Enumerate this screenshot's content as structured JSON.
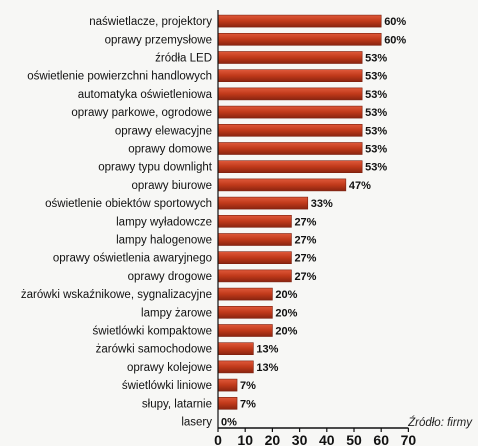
{
  "chart_data": {
    "type": "bar",
    "orientation": "horizontal",
    "title": "",
    "xlabel": "",
    "ylabel": "",
    "xlim": [
      0,
      70
    ],
    "xticks": [
      0,
      10,
      20,
      30,
      40,
      50,
      60,
      70
    ],
    "value_suffix": "%",
    "bar_color": "#c0391a",
    "grid": false,
    "source": "Źródło: firmy",
    "categories": [
      "naświetlacze, projektory",
      "oprawy przemysłowe",
      "źródła LED",
      "oświetlenie powierzchni handlowych",
      "automatyka oświetleniowa",
      "oprawy parkowe, ogrodowe",
      "oprawy elewacyjne",
      "oprawy domowe",
      "oprawy typu downlight",
      "oprawy biurowe",
      "oświetlenie obiektów sportowych",
      "lampy wyładowcze",
      "lampy halogenowe",
      "oprawy oświetlenia awaryjnego",
      "oprawy drogowe",
      "żarówki wskaźnikowe, sygnalizacyjne",
      "lampy żarowe",
      "świetlówki kompaktowe",
      "żarówki samochodowe",
      "oprawy kolejowe",
      "świetlówki liniowe",
      "słupy, latarnie",
      "lasery"
    ],
    "values": [
      60,
      60,
      53,
      53,
      53,
      53,
      53,
      53,
      53,
      47,
      33,
      27,
      27,
      27,
      27,
      20,
      20,
      20,
      13,
      13,
      7,
      7,
      0
    ],
    "value_labels": [
      "60%",
      "60%",
      "53%",
      "53%",
      "53%",
      "53%",
      "53%",
      "53%",
      "53%",
      "47%",
      "33%",
      "27%",
      "27%",
      "27%",
      "27%",
      "20%",
      "20%",
      "20%",
      "13%",
      "13%",
      "7%",
      "7%",
      "0%"
    ]
  }
}
